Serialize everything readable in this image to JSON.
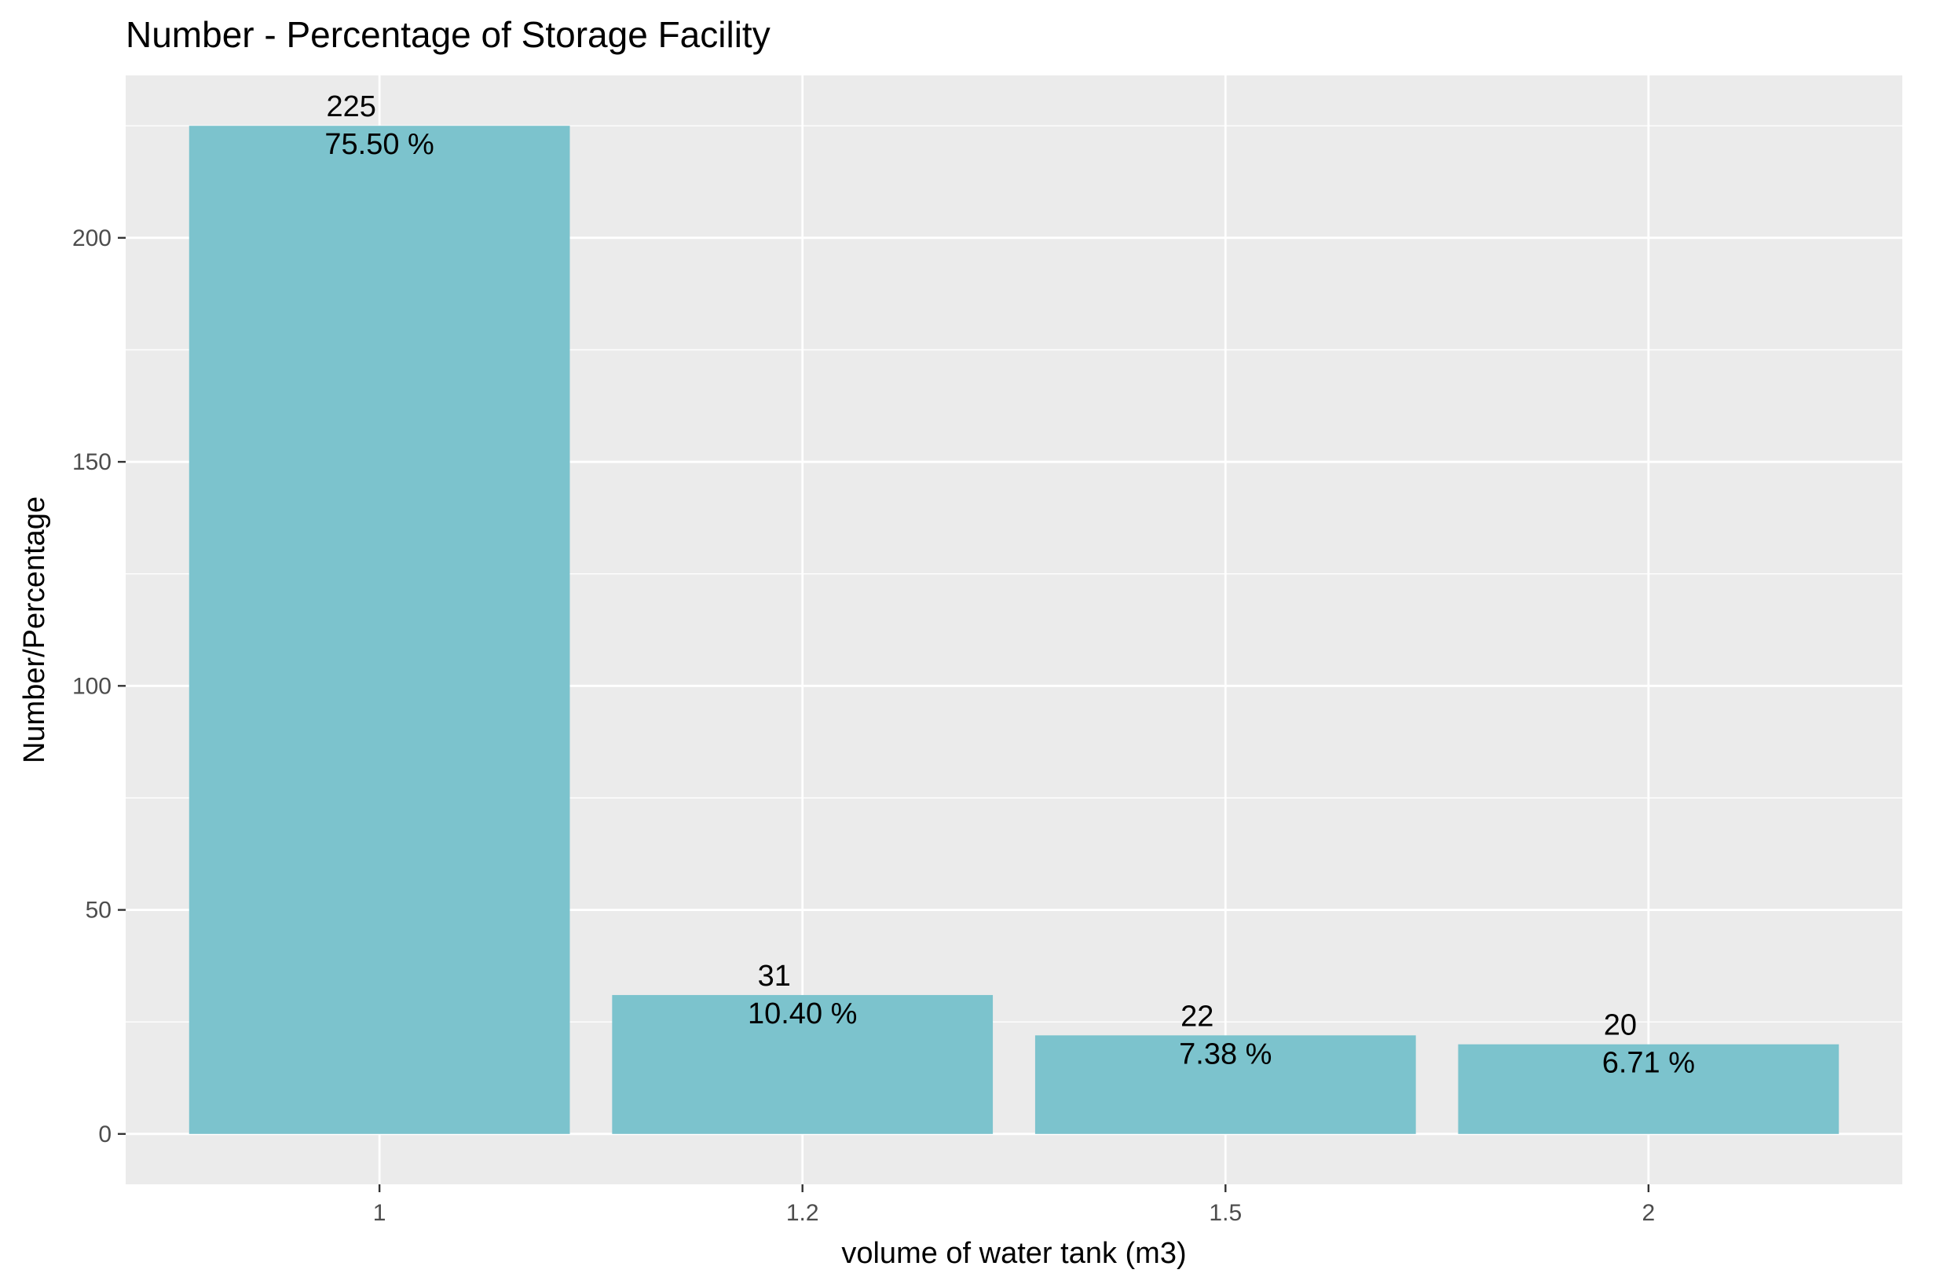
{
  "chart_data": {
    "type": "bar",
    "title": "Number - Percentage of Storage Facility",
    "xlabel": "volume of water tank (m3)",
    "ylabel": "Number/Percentage",
    "categories": [
      "1",
      "1.2",
      "1.5",
      "2"
    ],
    "values": [
      225,
      31,
      22,
      20
    ],
    "bar_labels": [
      {
        "count": "225",
        "percent": "75.50 %"
      },
      {
        "count": "31",
        "percent": "10.40 %"
      },
      {
        "count": "22",
        "percent": "7.38 %"
      },
      {
        "count": "20",
        "percent": "6.71 %"
      }
    ],
    "y_ticks": [
      0,
      50,
      100,
      150,
      200
    ],
    "ylim": [
      -11.25,
      236.25
    ],
    "grid": true,
    "colors": {
      "bar": "#7cc3cd",
      "panel": "#ebebeb",
      "grid": "#ffffff"
    }
  }
}
